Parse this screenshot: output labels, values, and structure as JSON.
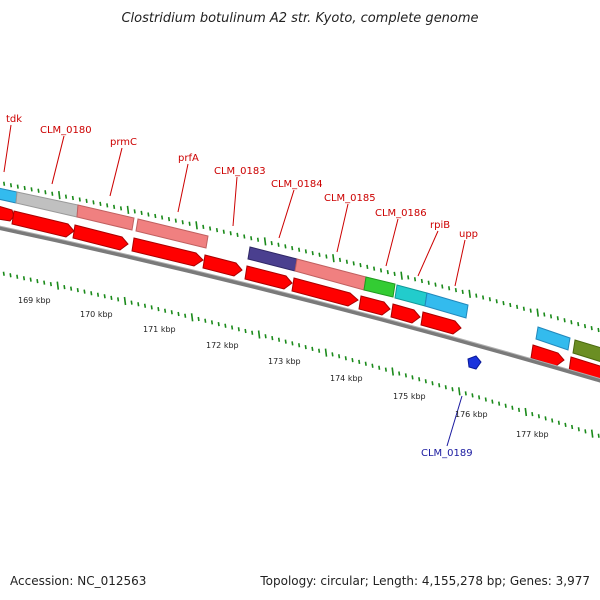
{
  "title": "Clostridium botulinum A2 str. Kyoto, complete genome",
  "footer": {
    "accession": "Accession: NC_012563",
    "topology": "Topology: circular; Length: 4,155,278 bp; Genes: 3,977"
  },
  "colors": {
    "forward_gene_red": "#ff0000",
    "backbone": "#777777",
    "tick_green": "#1a8a1a",
    "label_red": "#cc0000",
    "label_blue": "#1a1aa0"
  },
  "gene_labels": [
    "tdk",
    "CLM_0180",
    "prmC",
    "prfA",
    "CLM_0183",
    "CLM_0184",
    "CLM_0185",
    "CLM_0186",
    "rpiB",
    "upp"
  ],
  "reverse_gene_label": "CLM_0189",
  "kbp_labels": [
    "169 kbp",
    "170 kbp",
    "171 kbp",
    "172 kbp",
    "173 kbp",
    "174 kbp",
    "175 kbp",
    "176 kbp",
    "177 kbp"
  ]
}
